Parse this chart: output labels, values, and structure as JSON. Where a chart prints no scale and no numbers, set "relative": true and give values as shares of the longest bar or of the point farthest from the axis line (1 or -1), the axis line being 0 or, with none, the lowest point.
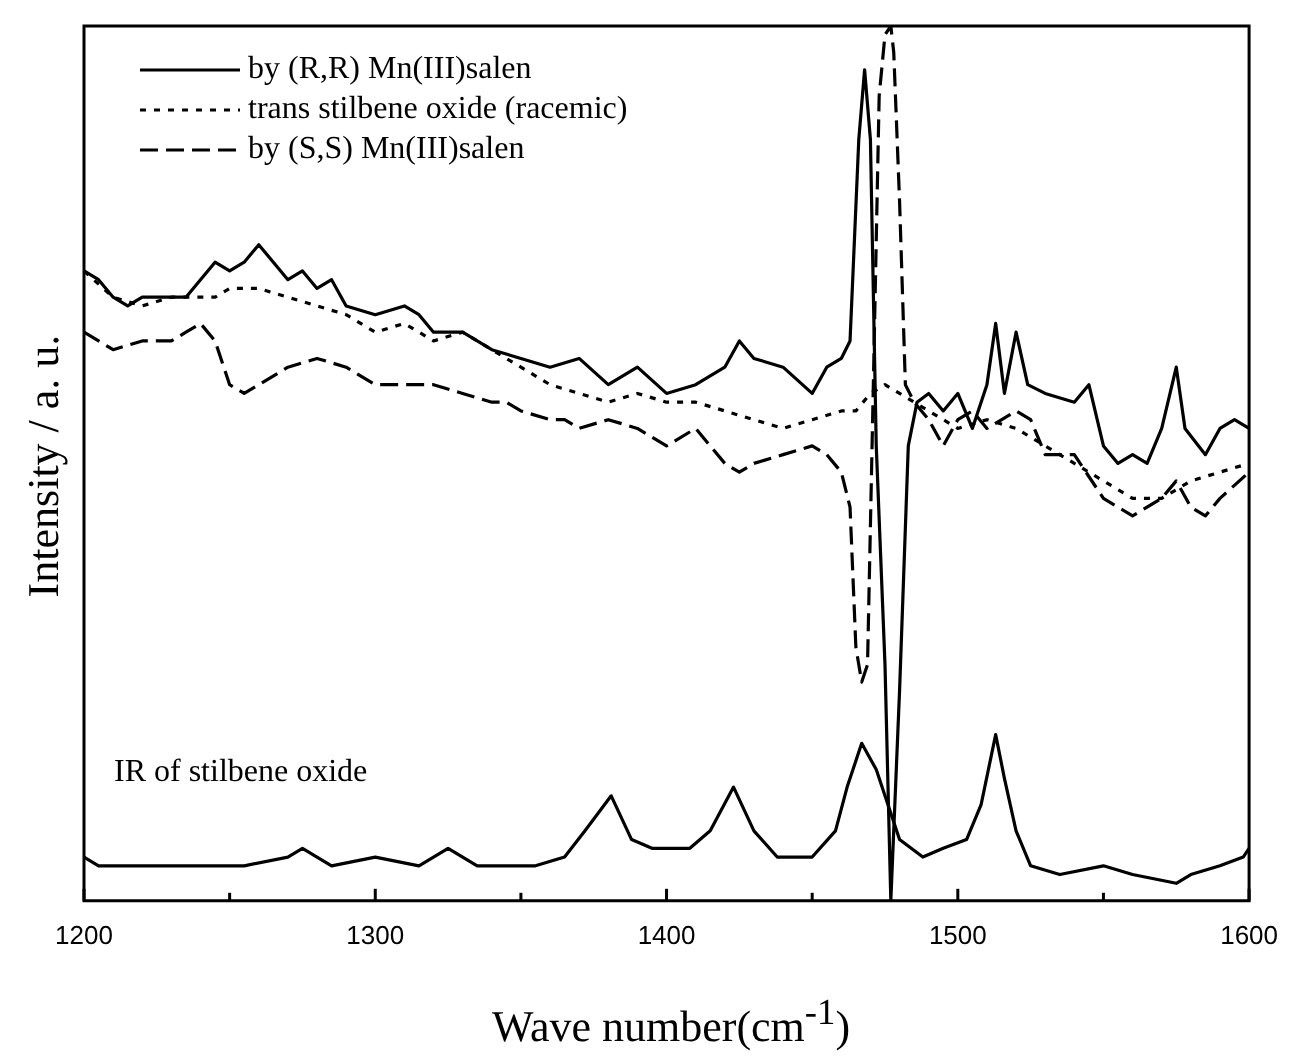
{
  "chart_data": {
    "type": "line",
    "relative": true,
    "xlabel": "Wave number(cm$^{-1}$)",
    "ylabel": "Intensity / a. u.",
    "xlim": [
      1200,
      1600
    ],
    "xticks": [
      1200,
      {
        "value": 1250,
        "label": null
      },
      1300,
      {
        "value": 1350,
        "label": null
      },
      1400,
      {
        "value": 1450,
        "label": null
      },
      1500,
      {
        "value": 1550,
        "label": null
      },
      1600
    ],
    "legend": "top left",
    "grid": false,
    "marker": "none",
    "annotations": [
      {
        "text": "IR of stilbene oxide",
        "x": 1200,
        "y": 0.05
      }
    ],
    "series": [
      {
        "name": "by (R,R) Mn(III)salen",
        "color": "#000000",
        "line_style": "solid",
        "x": [
          1200,
          1205,
          1210,
          1215,
          1220,
          1230,
          1235,
          1240,
          1245,
          1250,
          1255,
          1260,
          1265,
          1270,
          1275,
          1280,
          1285,
          1290,
          1300,
          1310,
          1315,
          1320,
          1330,
          1340,
          1350,
          1360,
          1370,
          1380,
          1390,
          1400,
          1410,
          1420,
          1425,
          1430,
          1440,
          1450,
          1455,
          1460,
          1463,
          1466,
          1468,
          1470,
          1472,
          1475,
          1477,
          1480,
          1483,
          1486,
          1490,
          1495,
          1500,
          1505,
          1510,
          1513,
          1516,
          1520,
          1524,
          1530,
          1540,
          1545,
          1550,
          1555,
          1560,
          1565,
          1570,
          1575,
          1578,
          1585,
          1590,
          1595,
          1600
        ],
        "values": [
          0.72,
          0.71,
          0.69,
          0.68,
          0.69,
          0.69,
          0.69,
          0.71,
          0.73,
          0.72,
          0.73,
          0.75,
          0.73,
          0.71,
          0.72,
          0.7,
          0.71,
          0.68,
          0.67,
          0.68,
          0.67,
          0.65,
          0.65,
          0.63,
          0.62,
          0.61,
          0.62,
          0.59,
          0.61,
          0.58,
          0.59,
          0.61,
          0.64,
          0.62,
          0.61,
          0.58,
          0.61,
          0.62,
          0.64,
          0.87,
          0.95,
          0.87,
          0.52,
          0.27,
          0.0,
          0.24,
          0.52,
          0.57,
          0.58,
          0.56,
          0.58,
          0.54,
          0.59,
          0.66,
          0.58,
          0.65,
          0.59,
          0.58,
          0.57,
          0.59,
          0.52,
          0.5,
          0.51,
          0.5,
          0.54,
          0.61,
          0.54,
          0.51,
          0.54,
          0.55,
          0.54
        ]
      },
      {
        "name": "trans stilbene oxide (racemic)",
        "color": "#000000",
        "line_style": "dotted",
        "x": [
          1200,
          1210,
          1220,
          1230,
          1240,
          1245,
          1250,
          1260,
          1270,
          1280,
          1290,
          1300,
          1310,
          1320,
          1330,
          1340,
          1350,
          1360,
          1370,
          1380,
          1390,
          1400,
          1410,
          1420,
          1430,
          1440,
          1450,
          1460,
          1465,
          1470,
          1475,
          1480,
          1490,
          1500,
          1510,
          1520,
          1530,
          1540,
          1550,
          1560,
          1570,
          1580,
          1590,
          1600
        ],
        "values": [
          0.72,
          0.69,
          0.68,
          0.69,
          0.69,
          0.69,
          0.7,
          0.7,
          0.69,
          0.68,
          0.67,
          0.65,
          0.66,
          0.64,
          0.65,
          0.63,
          0.61,
          0.59,
          0.58,
          0.57,
          0.58,
          0.57,
          0.57,
          0.56,
          0.55,
          0.54,
          0.55,
          0.56,
          0.56,
          0.58,
          0.59,
          0.58,
          0.56,
          0.54,
          0.55,
          0.54,
          0.52,
          0.5,
          0.48,
          0.46,
          0.46,
          0.48,
          0.49,
          0.5
        ]
      },
      {
        "name": "by (S,S) Mn(III)salen",
        "color": "#000000",
        "line_style": "dashed",
        "x": [
          1200,
          1205,
          1210,
          1220,
          1230,
          1235,
          1240,
          1245,
          1250,
          1255,
          1260,
          1270,
          1280,
          1290,
          1300,
          1310,
          1320,
          1330,
          1340,
          1345,
          1350,
          1360,
          1365,
          1370,
          1380,
          1390,
          1400,
          1410,
          1420,
          1425,
          1430,
          1440,
          1450,
          1455,
          1460,
          1463,
          1465,
          1467,
          1469,
          1471,
          1473,
          1475,
          1477,
          1478,
          1480,
          1482,
          1485,
          1490,
          1495,
          1500,
          1505,
          1510,
          1520,
          1525,
          1530,
          1540,
          1550,
          1555,
          1560,
          1570,
          1575,
          1580,
          1585,
          1590,
          1600
        ],
        "values": [
          0.65,
          0.64,
          0.63,
          0.64,
          0.64,
          0.65,
          0.66,
          0.64,
          0.59,
          0.58,
          0.59,
          0.61,
          0.62,
          0.61,
          0.59,
          0.59,
          0.59,
          0.58,
          0.57,
          0.57,
          0.56,
          0.55,
          0.55,
          0.54,
          0.55,
          0.54,
          0.52,
          0.54,
          0.5,
          0.49,
          0.5,
          0.51,
          0.52,
          0.51,
          0.49,
          0.45,
          0.29,
          0.25,
          0.27,
          0.59,
          0.92,
          0.99,
          1.0,
          0.97,
          0.8,
          0.59,
          0.57,
          0.55,
          0.52,
          0.55,
          0.56,
          0.54,
          0.56,
          0.55,
          0.51,
          0.51,
          0.46,
          0.45,
          0.44,
          0.46,
          0.48,
          0.45,
          0.44,
          0.46,
          0.49
        ]
      },
      {
        "color": "#000000",
        "line_style": "solid",
        "x": [
          1200,
          1205,
          1215,
          1255,
          1270,
          1275,
          1285,
          1300,
          1315,
          1325,
          1335,
          1355,
          1365,
          1372,
          1381,
          1388,
          1395,
          1408,
          1415,
          1423,
          1430,
          1438,
          1450,
          1458,
          1462,
          1467,
          1472,
          1476,
          1480,
          1488,
          1495,
          1503,
          1508,
          1513,
          1516,
          1520,
          1525,
          1535,
          1550,
          1560,
          1575,
          1580,
          1590,
          1598,
          1600
        ],
        "values": [
          0.05,
          0.04,
          0.04,
          0.04,
          0.05,
          0.06,
          0.04,
          0.05,
          0.04,
          0.06,
          0.04,
          0.04,
          0.05,
          0.08,
          0.12,
          0.07,
          0.06,
          0.06,
          0.08,
          0.13,
          0.08,
          0.05,
          0.05,
          0.08,
          0.13,
          0.18,
          0.15,
          0.11,
          0.07,
          0.05,
          0.06,
          0.07,
          0.11,
          0.19,
          0.14,
          0.08,
          0.04,
          0.03,
          0.04,
          0.03,
          0.02,
          0.03,
          0.04,
          0.05,
          0.06
        ]
      }
    ]
  }
}
